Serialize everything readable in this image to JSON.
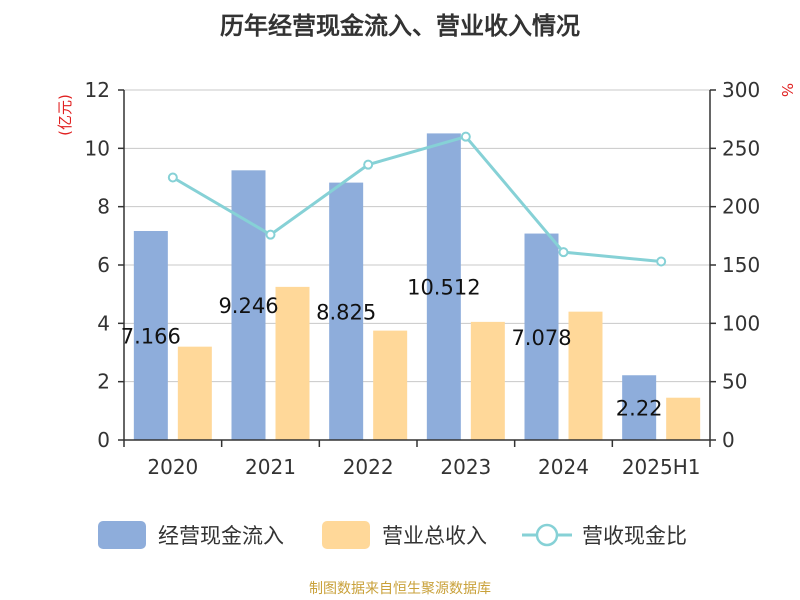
{
  "chart_data": {
    "type": "bar",
    "title": "历年经营现金流入、营业收入情况",
    "categories": [
      "2020",
      "2021",
      "2022",
      "2023",
      "2024",
      "2025H1"
    ],
    "series": [
      {
        "name": "经营现金流入",
        "type": "bar",
        "axis": "left",
        "color": "#8eaddb",
        "values": [
          7.166,
          9.246,
          8.825,
          10.512,
          7.078,
          2.22
        ],
        "labels": [
          "7.166",
          "9.246",
          "8.825",
          "10.512",
          "7.078",
          "2.22"
        ]
      },
      {
        "name": "营业总收入",
        "type": "bar",
        "axis": "left",
        "color": "#ffd899",
        "values": [
          3.2,
          5.25,
          3.75,
          4.05,
          4.4,
          1.45
        ]
      },
      {
        "name": "营收现金比",
        "type": "line",
        "axis": "right",
        "color": "#86d1d6",
        "values": [
          225,
          176,
          236,
          260,
          161,
          153
        ]
      }
    ],
    "left_axis": {
      "unit": "(亿元)",
      "ylim": [
        0,
        12
      ],
      "ticks": [
        "0",
        "2",
        "4",
        "6",
        "8",
        "10",
        "12"
      ]
    },
    "right_axis": {
      "unit": "%",
      "ylim": [
        0,
        300
      ],
      "ticks": [
        "0",
        "50",
        "100",
        "150",
        "200",
        "250",
        "300"
      ]
    },
    "grid": true,
    "legend": "bottom"
  },
  "source": "制图数据来自恒生聚源数据库"
}
